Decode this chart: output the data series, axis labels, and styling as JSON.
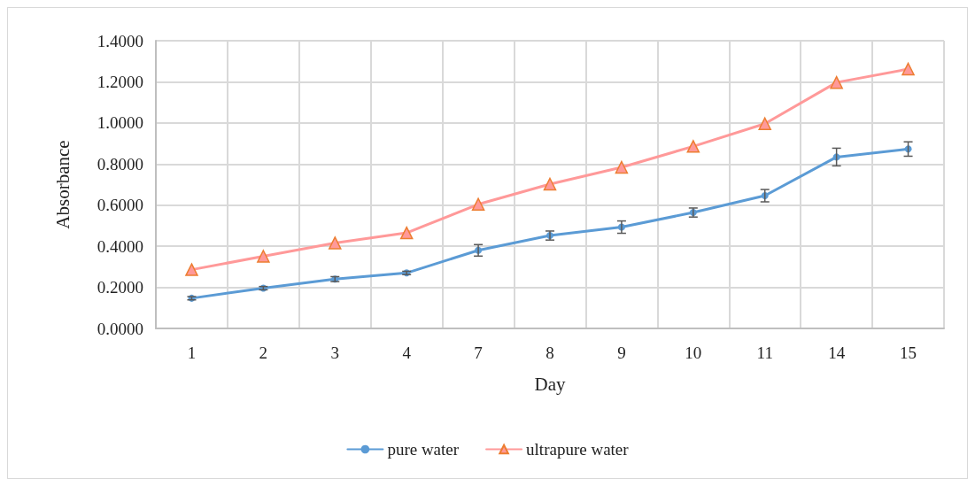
{
  "chart_data": {
    "type": "line",
    "xlabel": "Day",
    "ylabel": "Absorbance",
    "categories": [
      "1",
      "2",
      "3",
      "4",
      "7",
      "8",
      "9",
      "10",
      "11",
      "14",
      "15"
    ],
    "series": [
      {
        "name": "pure water",
        "color": "#5b9bd5",
        "marker": "circle",
        "values": [
          0.147,
          0.196,
          0.24,
          0.27,
          0.38,
          0.452,
          0.493,
          0.564,
          0.646,
          0.834,
          0.873
        ],
        "errors": [
          0.008,
          0.008,
          0.012,
          0.008,
          0.028,
          0.022,
          0.03,
          0.022,
          0.03,
          0.043,
          0.035
        ]
      },
      {
        "name": "ultrapure water",
        "color": "#ff9999",
        "marker": "triangle",
        "values": [
          0.286,
          0.351,
          0.416,
          0.465,
          0.604,
          0.702,
          0.784,
          0.886,
          0.996,
          1.197,
          1.262
        ]
      }
    ],
    "ylim": [
      0,
      1.4
    ],
    "yticks": [
      {
        "value": 0,
        "label": "0.0000"
      },
      {
        "value": 0.2,
        "label": "0.2000"
      },
      {
        "value": 0.4,
        "label": "0.4000"
      },
      {
        "value": 0.6,
        "label": "0.6000"
      },
      {
        "value": 0.8,
        "label": "0.8000"
      },
      {
        "value": 1,
        "label": "1.0000"
      },
      {
        "value": 1.2,
        "label": "1.2000"
      },
      {
        "value": 1.4,
        "label": "1.4000"
      }
    ],
    "grid": true,
    "legend": "bottom",
    "line_style": "solid"
  }
}
